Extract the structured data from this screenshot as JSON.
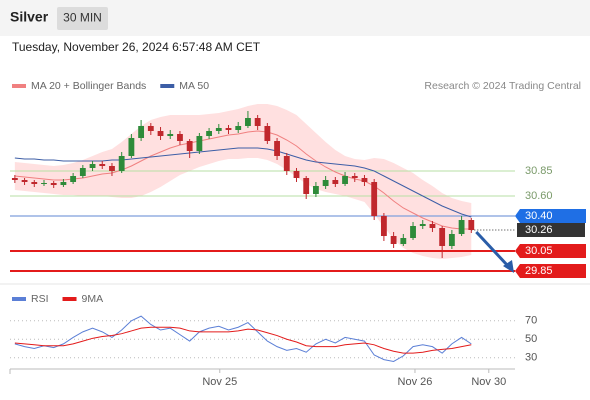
{
  "header": {
    "title": "Silver",
    "timeframe": "30 MIN",
    "datetime": "Tuesday, November 26, 2024 6:57:48 AM CET",
    "credit": "Research © 2024 Trading Central"
  },
  "chart_data": [
    {
      "type": "candlestick",
      "xlim": [
        0,
        52
      ],
      "ylim": [
        29.74,
        31.59
      ],
      "up_color": "#2e8b3a",
      "down_color": "#c0282d",
      "candles": [
        [
          30.78,
          30.81,
          30.73,
          30.76
        ],
        [
          30.76,
          30.78,
          30.71,
          30.74
        ],
        [
          30.74,
          30.76,
          30.69,
          30.72
        ],
        [
          30.72,
          30.76,
          30.7,
          30.73
        ],
        [
          30.73,
          30.75,
          30.68,
          30.71
        ],
        [
          30.71,
          30.77,
          30.69,
          30.74
        ],
        [
          30.74,
          30.83,
          30.72,
          30.8
        ],
        [
          30.8,
          30.91,
          30.78,
          30.88
        ],
        [
          30.88,
          30.95,
          30.85,
          30.92
        ],
        [
          30.92,
          30.95,
          30.87,
          30.9
        ],
        [
          30.9,
          30.93,
          30.8,
          30.85
        ],
        [
          30.85,
          31.04,
          30.83,
          31.0
        ],
        [
          31.0,
          31.22,
          30.98,
          31.18
        ],
        [
          31.18,
          31.36,
          31.15,
          31.3
        ],
        [
          31.3,
          31.33,
          31.21,
          31.25
        ],
        [
          31.25,
          31.29,
          31.16,
          31.2
        ],
        [
          31.2,
          31.26,
          31.17,
          31.22
        ],
        [
          31.22,
          31.25,
          31.11,
          31.15
        ],
        [
          31.15,
          31.17,
          30.98,
          31.05
        ],
        [
          31.05,
          31.23,
          31.02,
          31.2
        ],
        [
          31.2,
          31.28,
          31.17,
          31.25
        ],
        [
          31.25,
          31.32,
          31.22,
          31.28
        ],
        [
          31.28,
          31.31,
          31.22,
          31.26
        ],
        [
          31.26,
          31.34,
          31.23,
          31.3
        ],
        [
          31.3,
          31.45,
          31.28,
          31.38
        ],
        [
          31.38,
          31.41,
          31.26,
          31.3
        ],
        [
          31.3,
          31.33,
          31.12,
          31.15
        ],
        [
          31.15,
          31.18,
          30.96,
          31.0
        ],
        [
          31.0,
          31.03,
          30.81,
          30.85
        ],
        [
          30.85,
          30.88,
          30.74,
          30.78
        ],
        [
          30.78,
          30.8,
          30.57,
          30.62
        ],
        [
          30.62,
          30.74,
          30.59,
          30.7
        ],
        [
          30.7,
          30.8,
          30.67,
          30.76
        ],
        [
          30.76,
          30.79,
          30.69,
          30.72
        ],
        [
          30.72,
          30.84,
          30.7,
          30.8
        ],
        [
          30.8,
          30.83,
          30.74,
          30.78
        ],
        [
          30.78,
          30.81,
          30.7,
          30.74
        ],
        [
          30.74,
          30.77,
          30.36,
          30.4
        ],
        [
          30.4,
          30.43,
          30.15,
          30.2
        ],
        [
          30.2,
          30.24,
          30.08,
          30.12
        ],
        [
          30.12,
          30.22,
          30.1,
          30.18
        ],
        [
          30.18,
          30.34,
          30.16,
          30.3
        ],
        [
          30.3,
          30.36,
          30.27,
          30.32
        ],
        [
          30.32,
          30.35,
          30.24,
          30.28
        ],
        [
          30.28,
          30.3,
          29.98,
          30.1
        ],
        [
          30.1,
          30.26,
          30.07,
          30.22
        ],
        [
          30.22,
          30.4,
          30.2,
          30.36
        ],
        [
          30.36,
          30.38,
          30.23,
          30.26
        ]
      ],
      "series": [
        {
          "name": "MA 20 + Bollinger Bands",
          "color": "#f08080",
          "band_color": "#ffd6d6",
          "values": [
            30.8,
            30.79,
            30.78,
            30.77,
            30.76,
            30.76,
            30.77,
            30.78,
            30.8,
            30.82,
            30.83,
            30.86,
            30.9,
            30.95,
            31.0,
            31.04,
            31.08,
            31.11,
            31.13,
            31.15,
            31.17,
            31.19,
            31.21,
            31.22,
            31.24,
            31.25,
            31.24,
            31.21,
            31.16,
            31.1,
            31.02,
            30.95,
            30.89,
            30.84,
            30.8,
            30.77,
            30.75,
            30.7,
            30.63,
            30.55,
            30.48,
            30.43,
            30.38,
            30.34,
            30.3,
            30.28,
            30.27,
            30.27
          ],
          "band_upper": [
            30.94,
            30.93,
            30.92,
            30.91,
            30.9,
            30.91,
            30.93,
            30.96,
            31.0,
            31.04,
            31.07,
            31.14,
            31.22,
            31.3,
            31.36,
            31.39,
            31.41,
            31.41,
            31.41,
            31.41,
            31.42,
            31.43,
            31.45,
            31.47,
            31.5,
            31.52,
            31.52,
            31.5,
            31.46,
            31.41,
            31.32,
            31.23,
            31.14,
            31.06,
            31.0,
            30.97,
            30.96,
            30.98,
            30.97,
            30.93,
            30.88,
            30.83,
            30.76,
            30.7,
            30.63,
            30.58,
            30.55,
            30.53
          ],
          "band_lower": [
            30.66,
            30.65,
            30.64,
            30.63,
            30.62,
            30.61,
            30.61,
            30.6,
            30.6,
            30.6,
            30.59,
            30.58,
            30.58,
            30.6,
            30.64,
            30.69,
            30.75,
            30.81,
            30.85,
            30.89,
            30.92,
            30.95,
            30.97,
            30.97,
            30.98,
            30.98,
            30.96,
            30.92,
            30.86,
            30.79,
            30.72,
            30.67,
            30.64,
            30.62,
            30.6,
            30.57,
            30.54,
            30.42,
            30.29,
            30.17,
            30.08,
            30.03,
            30.0,
            29.98,
            29.97,
            29.98,
            29.99,
            30.01
          ]
        },
        {
          "name": "MA 50",
          "color": "#3d5ea6",
          "values": [
            30.98,
            30.97,
            30.97,
            30.96,
            30.96,
            30.95,
            30.95,
            30.95,
            30.95,
            30.95,
            30.96,
            30.96,
            30.97,
            30.98,
            30.99,
            31.0,
            31.01,
            31.02,
            31.03,
            31.04,
            31.05,
            31.06,
            31.07,
            31.08,
            31.08,
            31.08,
            31.07,
            31.05,
            31.02,
            30.99,
            30.96,
            30.94,
            30.93,
            30.92,
            30.91,
            30.9,
            30.88,
            30.85,
            30.8,
            30.75,
            30.7,
            30.65,
            30.6,
            30.55,
            30.5,
            30.46,
            30.42,
            30.39
          ]
        }
      ],
      "levels": [
        {
          "value": 30.85,
          "label": "30.85",
          "color": "#b7dfa5",
          "style": "text"
        },
        {
          "value": 30.6,
          "label": "30.60",
          "color": "#b7dfa5",
          "style": "text"
        },
        {
          "value": 30.4,
          "label": "30.40",
          "color": "#1f6fe5",
          "style": "box"
        },
        {
          "value": 30.26,
          "label": "30.26",
          "color": "#333333",
          "style": "current"
        },
        {
          "value": 30.05,
          "label": "30.05",
          "color": "#e31b1b",
          "style": "box"
        },
        {
          "value": 29.85,
          "label": "29.85",
          "color": "#e31b1b",
          "style": "box"
        }
      ]
    },
    {
      "type": "line",
      "xlim": [
        0,
        52
      ],
      "ylim": [
        20,
        100
      ],
      "yticks": [
        30,
        50,
        70
      ],
      "grid": true,
      "xticks": [
        {
          "value": 21.6,
          "label": "Nov 25"
        },
        {
          "value": 41.7,
          "label": "Nov 26"
        },
        {
          "value": 49.3,
          "label": "Nov 30"
        }
      ],
      "series": [
        {
          "name": "RSI",
          "color": "#5b7fd6",
          "values": [
            45,
            42,
            40,
            43,
            41,
            45,
            52,
            58,
            62,
            58,
            52,
            60,
            70,
            75,
            66,
            60,
            62,
            55,
            48,
            58,
            62,
            64,
            60,
            63,
            68,
            58,
            48,
            42,
            38,
            40,
            36,
            45,
            50,
            46,
            52,
            50,
            48,
            33,
            28,
            26,
            32,
            42,
            44,
            42,
            35,
            45,
            52,
            45
          ]
        },
        {
          "name": "9MA",
          "color": "#e31b1b",
          "values": [
            46,
            45,
            44,
            43,
            43,
            43,
            45,
            48,
            51,
            53,
            54,
            56,
            59,
            62,
            63,
            63,
            63,
            62,
            59,
            58,
            58,
            58,
            58,
            59,
            61,
            60,
            57,
            54,
            50,
            47,
            43,
            42,
            42,
            42,
            44,
            45,
            46,
            44,
            40,
            37,
            35,
            35,
            36,
            38,
            39,
            40,
            42,
            44
          ]
        }
      ]
    }
  ]
}
